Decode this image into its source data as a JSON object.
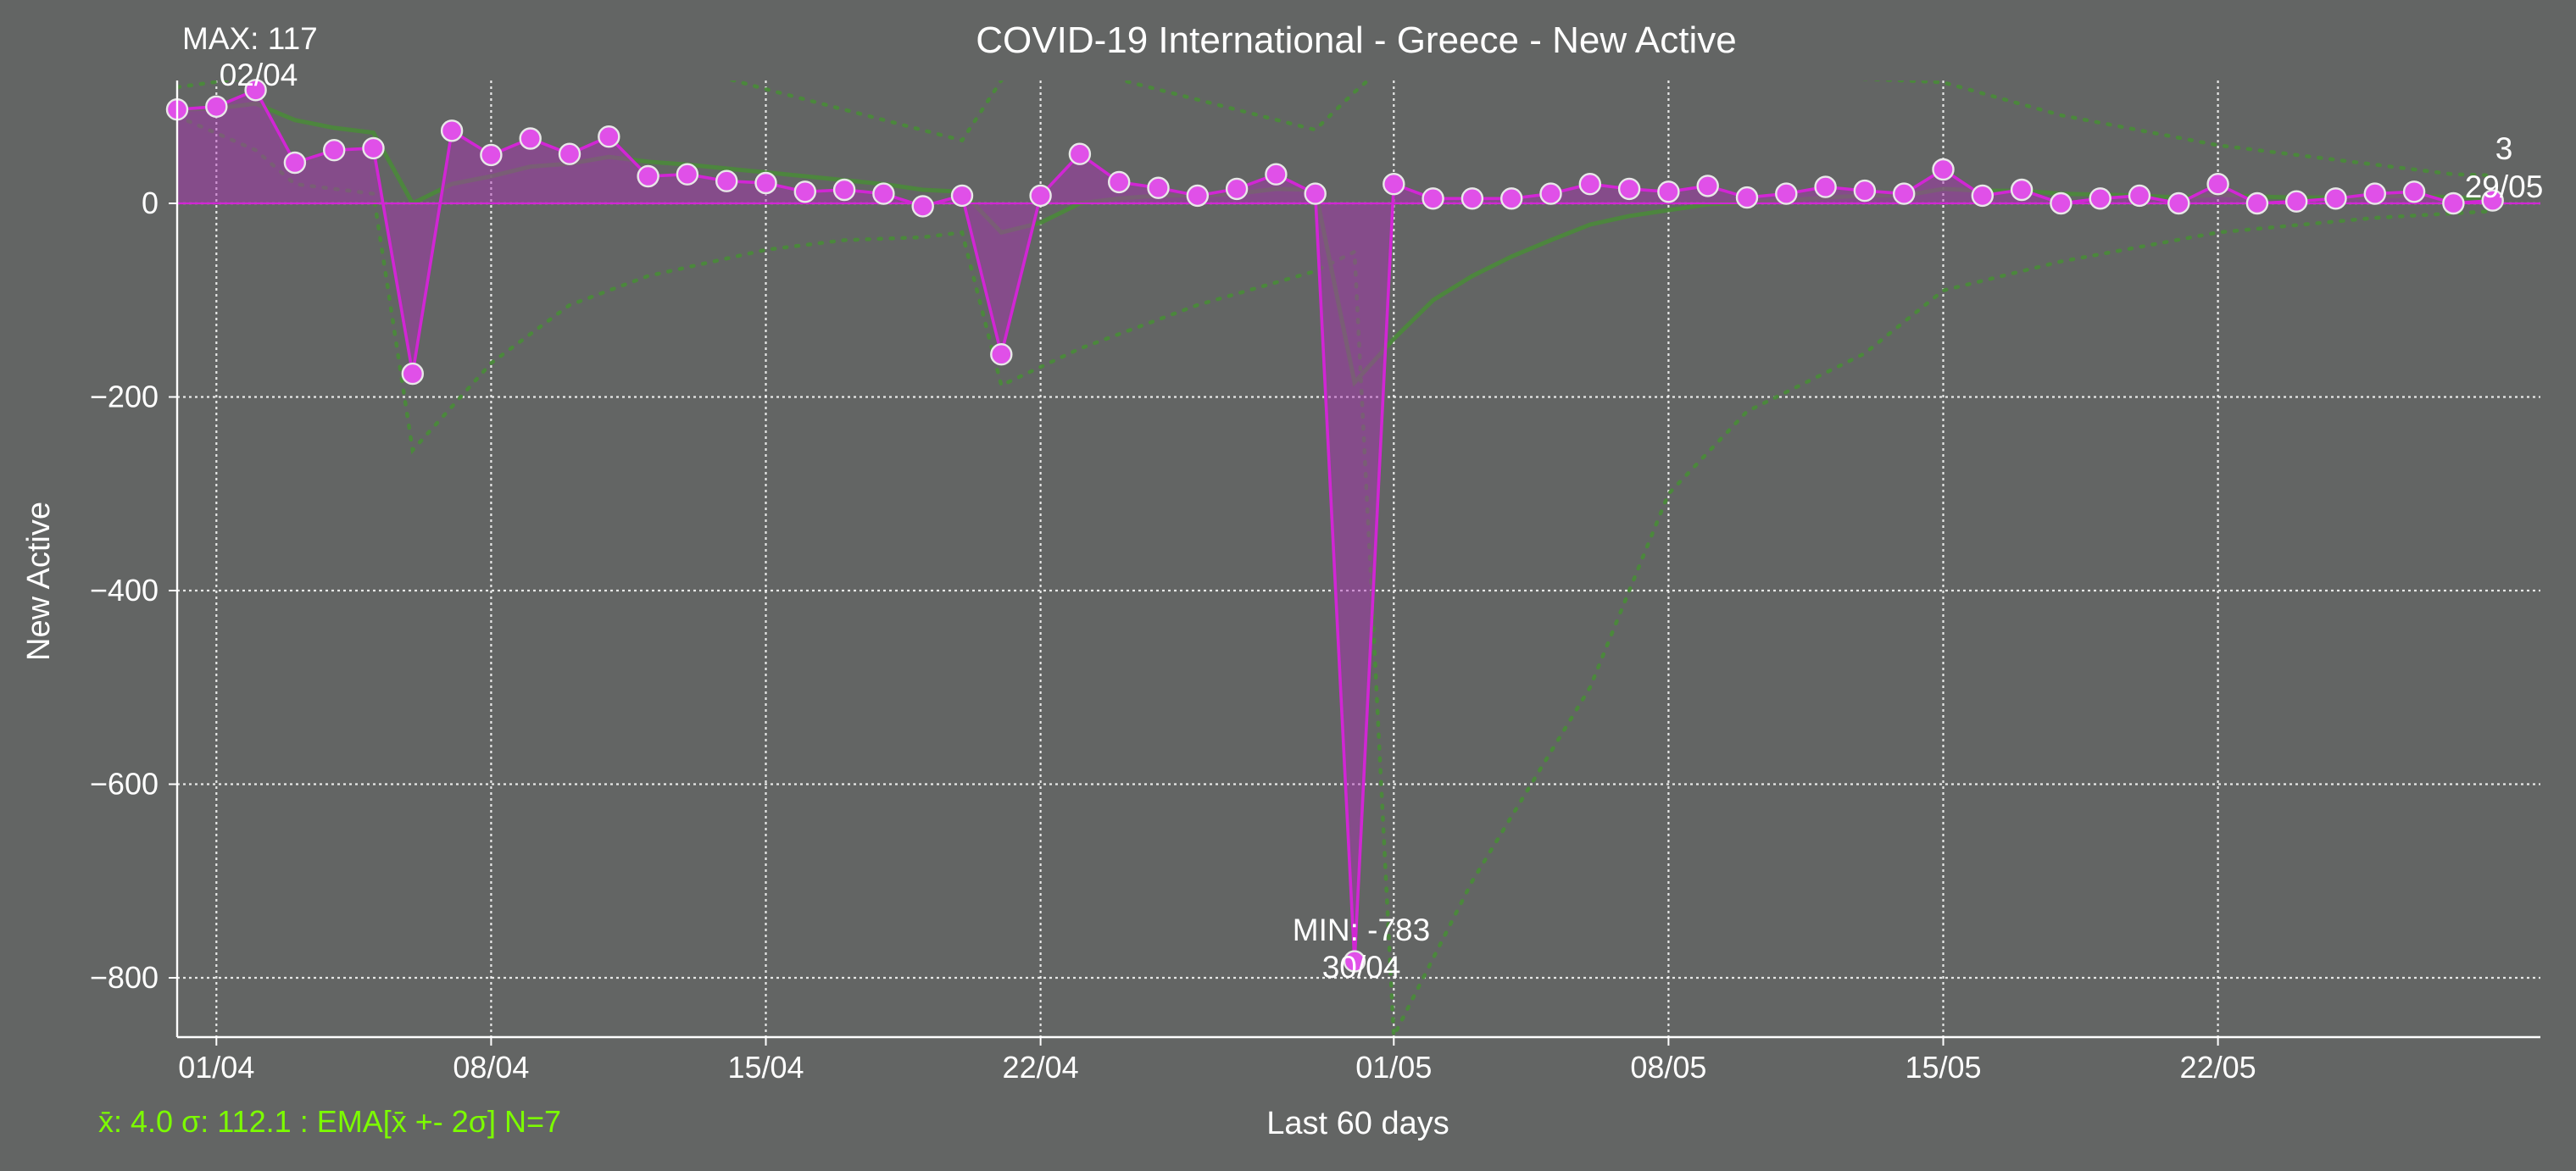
{
  "chart_data": {
    "type": "line",
    "title": "COVID-19 International - Greece - New Active",
    "xlabel": "Last 60 days",
    "ylabel": "New Active",
    "ylim": [
      -860,
      130
    ],
    "grid": true,
    "yticks": [
      0,
      -200,
      -400,
      -600,
      -800
    ],
    "ytick_labels": [
      "0",
      "−200",
      "−400",
      "−600",
      "−800"
    ],
    "xticks": [
      {
        "index": 1,
        "label": "01/04"
      },
      {
        "index": 8,
        "label": "08/04"
      },
      {
        "index": 15,
        "label": "15/04"
      },
      {
        "index": 22,
        "label": "22/04"
      },
      {
        "index": 31,
        "label": "01/05"
      },
      {
        "index": 38,
        "label": "08/05"
      },
      {
        "index": 45,
        "label": "15/05"
      },
      {
        "index": 52,
        "label": "22/05"
      }
    ],
    "series": [
      {
        "name": "New Active",
        "color": "#d126d4",
        "marker_fill": "#e050e8",
        "values": [
          97,
          100,
          117,
          42,
          55,
          57,
          -176,
          75,
          50,
          67,
          51,
          69,
          28,
          30,
          23,
          21,
          12,
          14,
          10,
          -3,
          8,
          -156,
          8,
          51,
          22,
          16,
          8,
          15,
          30,
          10,
          -783,
          20,
          5,
          5,
          5,
          10,
          20,
          15,
          12,
          18,
          6,
          10,
          17,
          13,
          10,
          35,
          8,
          14,
          0,
          5,
          8,
          0,
          20,
          0,
          2,
          5,
          10,
          12,
          0,
          3
        ]
      },
      {
        "name": "EMA",
        "color": "#4a8a3a",
        "values": [
          97,
          98,
          103,
          86,
          78,
          73,
          0,
          20,
          28,
          38,
          41,
          48,
          43,
          40,
          36,
          32,
          28,
          24,
          20,
          14,
          12,
          -30,
          -20,
          0,
          5,
          8,
          8,
          10,
          15,
          14,
          -185,
          -140,
          -100,
          -75,
          -55,
          -38,
          -22,
          -13,
          -7,
          -1,
          1,
          3,
          6,
          8,
          8,
          15,
          13,
          13,
          10,
          9,
          8,
          6,
          9,
          7,
          6,
          6,
          7,
          8,
          6,
          5
        ]
      },
      {
        "name": "EMA + 2σ",
        "color": "#4a8a3a",
        "dashed": true,
        "points": [
          [
            0,
            120
          ],
          [
            2,
            131
          ],
          [
            4,
            140
          ],
          [
            5,
            145
          ],
          [
            13,
            140
          ],
          [
            15,
            118
          ],
          [
            20,
            65
          ],
          [
            21,
            127
          ],
          [
            22,
            225
          ],
          [
            23,
            220
          ],
          [
            24,
            128
          ],
          [
            29,
            76
          ],
          [
            30,
            115
          ],
          [
            31,
            150
          ],
          [
            45,
            125
          ],
          [
            48,
            91
          ],
          [
            52,
            60
          ],
          [
            58,
            30
          ],
          [
            59,
            29
          ]
        ]
      },
      {
        "name": "EMA - 2σ",
        "color": "#4a8a3a",
        "dashed": true,
        "points": [
          [
            0,
            90
          ],
          [
            2,
            55
          ],
          [
            3,
            20
          ],
          [
            5,
            10
          ],
          [
            6,
            -255
          ],
          [
            8,
            -165
          ],
          [
            10,
            -105
          ],
          [
            12,
            -75
          ],
          [
            15,
            -48
          ],
          [
            17,
            -38
          ],
          [
            19,
            -35
          ],
          [
            20,
            -30
          ],
          [
            21,
            -188
          ],
          [
            23,
            -150
          ],
          [
            26,
            -105
          ],
          [
            29,
            -70
          ],
          [
            30,
            -50
          ],
          [
            31,
            -860
          ],
          [
            33,
            -700
          ],
          [
            36,
            -500
          ],
          [
            38,
            -300
          ],
          [
            40,
            -215
          ],
          [
            43,
            -155
          ],
          [
            45,
            -90
          ],
          [
            48,
            -60
          ],
          [
            52,
            -30
          ],
          [
            56,
            -15
          ],
          [
            59,
            -8
          ]
        ]
      }
    ],
    "annotations": [
      {
        "kind": "max",
        "index": 2,
        "value": 117,
        "line1": "MAX: 117",
        "line2": "02/04"
      },
      {
        "kind": "min",
        "index": 30,
        "value": -783,
        "line1": "MIN: -783",
        "line2": "30/04"
      },
      {
        "kind": "last",
        "index": 59,
        "value": 3,
        "line1": "3",
        "line2": "29/05"
      }
    ],
    "stats_text": "x̄: 4.0 σ: 112.1 : EMA[x̄ +- 2σ] N=7",
    "stats_color": "#7cfc00"
  }
}
